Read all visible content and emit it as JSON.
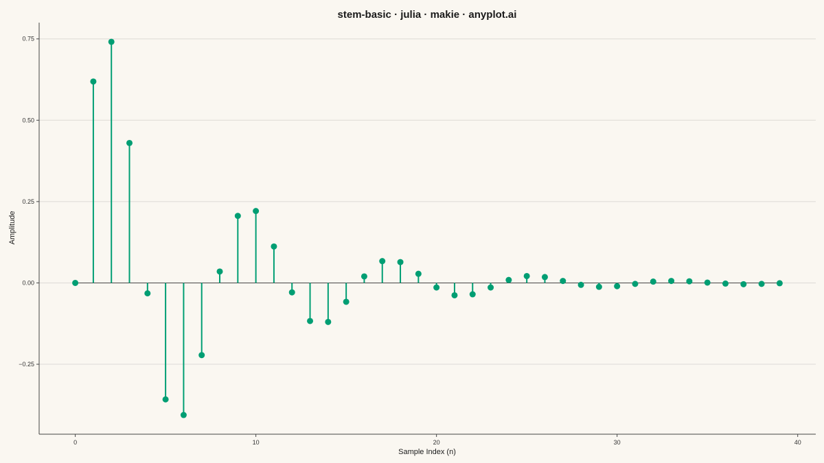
{
  "chart_data": {
    "type": "stem",
    "title": "stem-basic · julia · makie · anyplot.ai",
    "xlabel": "Sample Index (n)",
    "ylabel": "Amplitude",
    "xlim": [
      -2,
      41
    ],
    "ylim": [
      -0.465,
      0.8
    ],
    "x_ticks": [
      0,
      10,
      20,
      30,
      40
    ],
    "x_tick_labels": [
      "0",
      "10",
      "20",
      "30",
      "40"
    ],
    "y_ticks": [
      -0.25,
      0.0,
      0.25,
      0.5,
      0.75
    ],
    "y_tick_labels": [
      "−0.25",
      "0.00",
      "0.25",
      "0.50",
      "0.75"
    ],
    "grid": "horizontal",
    "baseline": 0,
    "color": "#009e73",
    "x": [
      0,
      1,
      2,
      3,
      4,
      5,
      6,
      7,
      8,
      9,
      10,
      11,
      12,
      13,
      14,
      15,
      16,
      17,
      18,
      19,
      20,
      21,
      22,
      23,
      24,
      25,
      26,
      27,
      28,
      29,
      30,
      31,
      32,
      33,
      34,
      35,
      36,
      37,
      38,
      39
    ],
    "values": [
      0.0,
      0.619,
      0.741,
      0.43,
      -0.032,
      -0.358,
      -0.406,
      -0.222,
      0.035,
      0.206,
      0.221,
      0.112,
      -0.029,
      -0.117,
      -0.12,
      -0.058,
      0.02,
      0.067,
      0.064,
      0.028,
      -0.014,
      -0.038,
      -0.035,
      -0.014,
      0.009,
      0.021,
      0.018,
      0.006,
      -0.006,
      -0.012,
      -0.01,
      -0.003,
      0.004,
      0.006,
      0.005,
      0.001,
      -0.002,
      -0.004,
      -0.003,
      -0.001
    ]
  }
}
